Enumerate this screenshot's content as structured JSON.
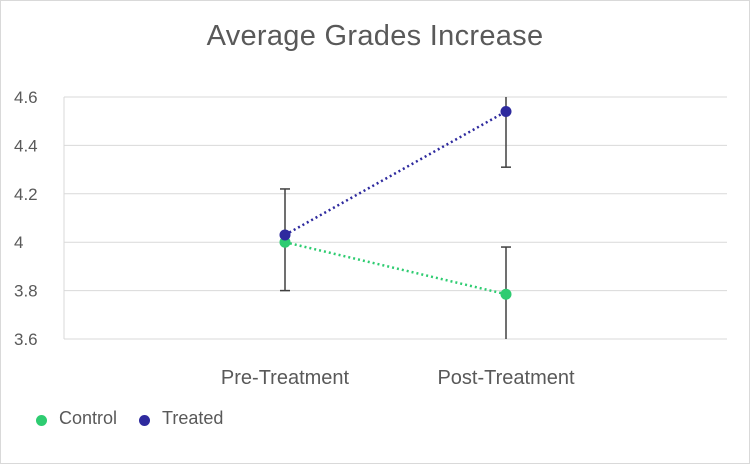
{
  "chart_data": {
    "type": "line",
    "title": "Average Grades Increase",
    "xlabel": "",
    "ylabel": "",
    "categories": [
      "Pre-Treatment",
      "Post-Treatment"
    ],
    "x_range": [
      0,
      3
    ],
    "ylim": [
      3.6,
      4.6
    ],
    "yticks": [
      3.6,
      3.8,
      4.0,
      4.2,
      4.4,
      4.6
    ],
    "ytick_labels": [
      "3.6",
      "3.8",
      "4",
      "4.2",
      "4.4",
      "4.6"
    ],
    "grid": true,
    "legend_position": "bottom-left",
    "series": [
      {
        "name": "Control",
        "color": "#2ecc71",
        "values": [
          4.0,
          3.785
        ],
        "error_low": [
          3.8,
          3.6
        ],
        "error_high": [
          4.22,
          3.98
        ]
      },
      {
        "name": "Treated",
        "color": "#2e2a9e",
        "values": [
          4.03,
          4.54
        ],
        "error_low": [
          4.03,
          4.31
        ],
        "error_high": [
          4.03,
          4.6
        ]
      }
    ]
  }
}
